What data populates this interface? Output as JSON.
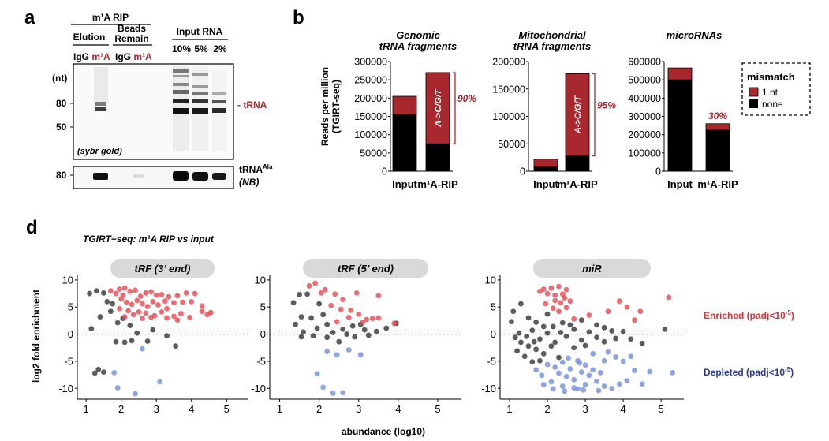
{
  "panels": {
    "a": {
      "letter": "a",
      "header_rip": "m¹A RIP",
      "header_elution": "Elution",
      "header_beads_1": "Beads",
      "header_beads_2": "Remain",
      "header_input": "Input RNA",
      "lane_labels": [
        "IgG",
        "m¹A",
        "IgG",
        "m¹A"
      ],
      "input_lane_labels": [
        "10%",
        "5%",
        "2%"
      ],
      "size_unit": "(nt)",
      "size_markers": [
        "80",
        "50"
      ],
      "trna_label": "- tRNA",
      "stain_label": "(sybr gold)",
      "nb_size_marker": "80",
      "nb_label": "tRNA",
      "nb_label_sup": "Ala",
      "nb_method": "(NB)"
    },
    "b": {
      "letter": "b",
      "y_label_1": "Reads per million",
      "y_label_2": "(TGIRT-seq)",
      "legend_title": "mismatch",
      "legend_items": [
        "1 nt",
        "none"
      ],
      "colors": {
        "mismatch": "#a8282e",
        "none": "#000000"
      }
    },
    "d": {
      "letter": "d",
      "title": "TGIRT−seq: m¹A RIP vs input",
      "y_label": "log2 fold enrichment",
      "x_label": "abundance (log10)",
      "legend_enriched": "Enriched (padj<10",
      "legend_enriched_sup": "-5",
      "legend_depleted": "Depleted (padj<10",
      "legend_depleted_sup": "-5",
      "colors": {
        "enriched": "#e8474f",
        "depleted": "#6f8fdc",
        "ns": "#333333",
        "strip": "#d9d9d9"
      }
    }
  },
  "chart_data": [
    {
      "type": "bar",
      "stacked": true,
      "title_1": "Genomic",
      "title_2": "tRNA fragments",
      "categories": [
        "Input",
        "m¹A-RIP"
      ],
      "series": [
        {
          "name": "none",
          "values": [
            155000,
            75000
          ]
        },
        {
          "name": "1 nt",
          "values": [
            50000,
            195000
          ]
        }
      ],
      "ylim": [
        0,
        300000
      ],
      "yticks": [
        "0",
        "50000",
        "100000",
        "150000",
        "200000",
        "250000",
        "300000"
      ],
      "bracket_text": "A->C/G/T",
      "annotation": "90%"
    },
    {
      "type": "bar",
      "stacked": true,
      "title_1": "Mitochondrial",
      "title_2": "tRNA fragments",
      "categories": [
        "Input",
        "m¹A-RIP"
      ],
      "series": [
        {
          "name": "none",
          "values": [
            8000,
            28000
          ]
        },
        {
          "name": "1 nt",
          "values": [
            14000,
            150000
          ]
        }
      ],
      "ylim": [
        0,
        200000
      ],
      "yticks": [
        "0",
        "50000",
        "100000",
        "150000",
        "200000"
      ],
      "bracket_text": "A->C/G/T",
      "annotation": "95%"
    },
    {
      "type": "bar",
      "stacked": true,
      "title_1": "microRNAs",
      "title_2": "",
      "categories": [
        "Input",
        "m¹A-RIP"
      ],
      "series": [
        {
          "name": "none",
          "values": [
            500000,
            225000
          ]
        },
        {
          "name": "1 nt",
          "values": [
            65000,
            35000
          ]
        }
      ],
      "ylim": [
        0,
        600000
      ],
      "yticks": [
        "0",
        "100000",
        "200000",
        "300000",
        "400000",
        "500000",
        "600000"
      ],
      "bracket_text": "",
      "annotation": "30%"
    },
    {
      "type": "scatter",
      "facet": "tRF (3’ end)",
      "xlim": [
        0.75,
        5.6
      ],
      "ylim": [
        -12,
        11
      ],
      "xticks": [
        "1",
        "2",
        "3",
        "4",
        "5"
      ],
      "yticks": [
        "10",
        "5",
        "0",
        "-5",
        "-10"
      ],
      "enriched": [
        [
          1.7,
          8
        ],
        [
          1.85,
          7.5
        ],
        [
          1.95,
          8.3
        ],
        [
          2.05,
          7.2
        ],
        [
          2.1,
          8.5
        ],
        [
          2.25,
          7.9
        ],
        [
          2.4,
          8.1
        ],
        [
          2.55,
          7
        ],
        [
          2.7,
          7.6
        ],
        [
          2.85,
          7.8
        ],
        [
          3.0,
          7.2
        ],
        [
          3.15,
          7.3
        ],
        [
          3.35,
          6.9
        ],
        [
          3.6,
          7.1
        ],
        [
          3.85,
          7.6
        ],
        [
          4.1,
          7.5
        ],
        [
          2.0,
          6.5
        ],
        [
          2.15,
          5.9
        ],
        [
          2.3,
          5.5
        ],
        [
          2.45,
          6.2
        ],
        [
          2.6,
          5.6
        ],
        [
          2.75,
          5.1
        ],
        [
          2.9,
          6
        ],
        [
          3.05,
          5.4
        ],
        [
          3.25,
          6.1
        ],
        [
          3.5,
          5.8
        ],
        [
          3.75,
          5.9
        ],
        [
          4.0,
          6
        ],
        [
          4.3,
          5.2
        ],
        [
          4.55,
          4
        ],
        [
          1.95,
          4.7
        ],
        [
          2.2,
          4.3
        ],
        [
          2.35,
          3.6
        ],
        [
          2.5,
          4.1
        ],
        [
          2.7,
          3.9
        ],
        [
          2.95,
          3.4
        ],
        [
          3.15,
          4.1
        ],
        [
          3.3,
          3
        ],
        [
          3.5,
          3.3
        ],
        [
          3.7,
          3.8
        ],
        [
          4.3,
          4.2
        ],
        [
          4.45,
          3.6
        ],
        [
          2.1,
          3.2
        ],
        [
          2.85,
          3.1
        ],
        [
          3.6,
          2.6
        ],
        [
          3.95,
          3.1
        ],
        [
          2.6,
          2.9
        ],
        [
          3.3,
          4.7
        ]
      ],
      "ns": [
        [
          1.1,
          7.5
        ],
        [
          1.3,
          8
        ],
        [
          1.5,
          7.6
        ],
        [
          1.6,
          6
        ],
        [
          1.4,
          3.2
        ],
        [
          1.7,
          4.2
        ],
        [
          1.9,
          2.1
        ],
        [
          1.15,
          1
        ],
        [
          2.25,
          1.6
        ],
        [
          2.45,
          0.2
        ],
        [
          2.3,
          -1.2
        ],
        [
          1.85,
          -1.4
        ],
        [
          2.1,
          -1.5
        ],
        [
          2.75,
          -1.3
        ],
        [
          3.3,
          -0.3
        ],
        [
          3.55,
          -2.2
        ],
        [
          1.35,
          -6.5
        ],
        [
          1.5,
          -7
        ],
        [
          1.25,
          -7.2
        ],
        [
          2.05,
          2.9
        ],
        [
          1.75,
          5.6
        ],
        [
          2.9,
          0.8
        ]
      ],
      "depleted": [
        [
          1.8,
          -7.1
        ],
        [
          1.9,
          -9.9
        ],
        [
          2.4,
          -11
        ],
        [
          3.1,
          -8.8
        ],
        [
          2.6,
          -2.7
        ]
      ]
    },
    {
      "type": "scatter",
      "facet": "tRF (5’ end)",
      "xlim": [
        0.75,
        5.6
      ],
      "ylim": [
        -12,
        11
      ],
      "xticks": [
        "1",
        "2",
        "3",
        "4",
        "5"
      ],
      "yticks": [
        "10",
        "5",
        "0",
        "-5",
        "-10"
      ],
      "enriched": [
        [
          1.75,
          8.9
        ],
        [
          1.9,
          9.4
        ],
        [
          2.05,
          7.6
        ],
        [
          2.15,
          8.2
        ],
        [
          2.4,
          7.4
        ],
        [
          2.6,
          6.4
        ],
        [
          2.95,
          7.6
        ],
        [
          3.5,
          7.1
        ],
        [
          2.3,
          5.3
        ],
        [
          2.55,
          4.6
        ],
        [
          2.8,
          4.4
        ],
        [
          3.0,
          3.7
        ],
        [
          3.2,
          2.7
        ],
        [
          3.35,
          2.9
        ],
        [
          3.5,
          3
        ],
        [
          2.75,
          3.1
        ],
        [
          2.45,
          2.3
        ],
        [
          3.1,
          2.2
        ],
        [
          3.9,
          2
        ]
      ],
      "ns": [
        [
          1.5,
          7.3
        ],
        [
          1.7,
          7.4
        ],
        [
          1.35,
          5.8
        ],
        [
          1.55,
          3.2
        ],
        [
          1.8,
          3
        ],
        [
          2.1,
          3.6
        ],
        [
          1.4,
          1.8
        ],
        [
          1.6,
          0.4
        ],
        [
          1.95,
          1.1
        ],
        [
          2.2,
          1.8
        ],
        [
          2.35,
          0.3
        ],
        [
          2.6,
          0.9
        ],
        [
          2.85,
          1.5
        ],
        [
          3.05,
          1.8
        ],
        [
          2.9,
          -0.5
        ],
        [
          2.2,
          -0.6
        ],
        [
          1.85,
          -0.3
        ],
        [
          3.25,
          -0.2
        ],
        [
          3.45,
          0.5
        ],
        [
          3.7,
          1.1
        ],
        [
          2.5,
          -1.4
        ],
        [
          1.55,
          -0.5
        ],
        [
          3.95,
          2
        ],
        [
          2.0,
          5.6
        ],
        [
          2.7,
          0
        ],
        [
          3.15,
          0.8
        ]
      ],
      "depleted": [
        [
          2.2,
          -3.2
        ],
        [
          2.45,
          -3.8
        ],
        [
          2.75,
          -2.9
        ],
        [
          2.1,
          -9.8
        ],
        [
          2.35,
          -10.9
        ],
        [
          2.6,
          -10.8
        ],
        [
          1.95,
          -7.3
        ],
        [
          3.05,
          -3.8
        ]
      ]
    },
    {
      "type": "scatter",
      "facet": "miR",
      "xlim": [
        0.75,
        5.6
      ],
      "ylim": [
        -12,
        11
      ],
      "xticks": [
        "1",
        "2",
        "3",
        "4",
        "5"
      ],
      "yticks": [
        "10",
        "5",
        "0",
        "-5",
        "-10"
      ],
      "enriched": [
        [
          1.8,
          7.9
        ],
        [
          1.9,
          8.3
        ],
        [
          2.0,
          7.5
        ],
        [
          2.1,
          8.5
        ],
        [
          2.2,
          7.2
        ],
        [
          2.3,
          8.8
        ],
        [
          2.4,
          7.4
        ],
        [
          2.5,
          8.2
        ],
        [
          2.2,
          6.2
        ],
        [
          2.35,
          5.8
        ],
        [
          2.45,
          6.7
        ],
        [
          2.6,
          6.1
        ],
        [
          1.95,
          5.6
        ],
        [
          2.15,
          4.8
        ],
        [
          2.3,
          4.2
        ],
        [
          2.5,
          4.9
        ],
        [
          3.6,
          4.2
        ],
        [
          3.9,
          6.1
        ],
        [
          4.1,
          5
        ],
        [
          4.45,
          4.2
        ],
        [
          4.3,
          2.6
        ],
        [
          5.2,
          6.8
        ],
        [
          3.1,
          3.5
        ],
        [
          2.7,
          2.8
        ]
      ],
      "ns": [
        [
          1.1,
          4.2
        ],
        [
          1.3,
          5.6
        ],
        [
          1.5,
          3
        ],
        [
          1.7,
          2.2
        ],
        [
          1.9,
          1.4
        ],
        [
          2.0,
          3.7
        ],
        [
          2.4,
          2.1
        ],
        [
          2.9,
          2.6
        ],
        [
          3.3,
          1.7
        ],
        [
          3.5,
          1.2
        ],
        [
          1.15,
          -0.6
        ],
        [
          1.3,
          -1.5
        ],
        [
          1.5,
          -2.2
        ],
        [
          1.6,
          0.7
        ],
        [
          1.8,
          -0.9
        ],
        [
          2.0,
          0.2
        ],
        [
          2.2,
          -1.5
        ],
        [
          2.5,
          -0.4
        ],
        [
          2.7,
          0.9
        ],
        [
          2.9,
          -1.1
        ],
        [
          3.1,
          0.4
        ],
        [
          3.3,
          -0.6
        ],
        [
          3.5,
          -1.4
        ],
        [
          3.7,
          0.6
        ],
        [
          4.0,
          0.5
        ],
        [
          4.2,
          -0.9
        ],
        [
          4.5,
          -1.7
        ],
        [
          5.1,
          0.9
        ],
        [
          1.2,
          -3.1
        ],
        [
          1.4,
          -4.1
        ],
        [
          1.7,
          -2.8
        ],
        [
          1.9,
          -3.6
        ],
        [
          2.1,
          -2.2
        ],
        [
          2.3,
          -4.3
        ],
        [
          1.6,
          -5.1
        ],
        [
          1.8,
          -4.9
        ],
        [
          2.7,
          -2.5
        ],
        [
          3.0,
          -2.1
        ],
        [
          1.25,
          0.2
        ],
        [
          1.45,
          -0.4
        ],
        [
          1.65,
          -1.4
        ],
        [
          2.15,
          1.4
        ],
        [
          2.6,
          1.7
        ],
        [
          3.8,
          -0.8
        ],
        [
          1.05,
          2.3
        ],
        [
          2.35,
          0.3
        ]
      ],
      "depleted": [
        [
          2.0,
          -5.6
        ],
        [
          2.2,
          -6.1
        ],
        [
          2.4,
          -5.2
        ],
        [
          2.6,
          -6.4
        ],
        [
          2.8,
          -4.9
        ],
        [
          3.0,
          -5.7
        ],
        [
          3.2,
          -6.6
        ],
        [
          2.3,
          -7.2
        ],
        [
          2.5,
          -7.8
        ],
        [
          2.7,
          -8.4
        ],
        [
          2.9,
          -7
        ],
        [
          3.1,
          -7.6
        ],
        [
          2.1,
          -8.8
        ],
        [
          1.9,
          -9.3
        ],
        [
          2.4,
          -9.6
        ],
        [
          2.7,
          -9.9
        ],
        [
          2.8,
          -10.1
        ],
        [
          3.0,
          -9.3
        ],
        [
          3.3,
          -8.7
        ],
        [
          3.5,
          -9.6
        ],
        [
          3.7,
          -10
        ],
        [
          3.9,
          -9.2
        ],
        [
          4.1,
          -8.6
        ],
        [
          4.5,
          -9.2
        ],
        [
          3.5,
          -4.9
        ],
        [
          3.8,
          -4.2
        ],
        [
          3.6,
          -3.3
        ],
        [
          4.0,
          -5
        ],
        [
          4.2,
          -4.1
        ],
        [
          3.2,
          -3.6
        ],
        [
          2.55,
          -4.4
        ],
        [
          1.7,
          -6.6
        ],
        [
          2.95,
          -10.3
        ],
        [
          4.3,
          -6.7
        ],
        [
          4.7,
          -6.9
        ],
        [
          5.3,
          -7.1
        ],
        [
          3.35,
          -10.4
        ],
        [
          2.15,
          -10.1
        ],
        [
          2.45,
          -10.5
        ],
        [
          2.85,
          -5.3
        ],
        [
          3.4,
          -7.1
        ],
        [
          1.85,
          -7.6
        ]
      ]
    }
  ]
}
